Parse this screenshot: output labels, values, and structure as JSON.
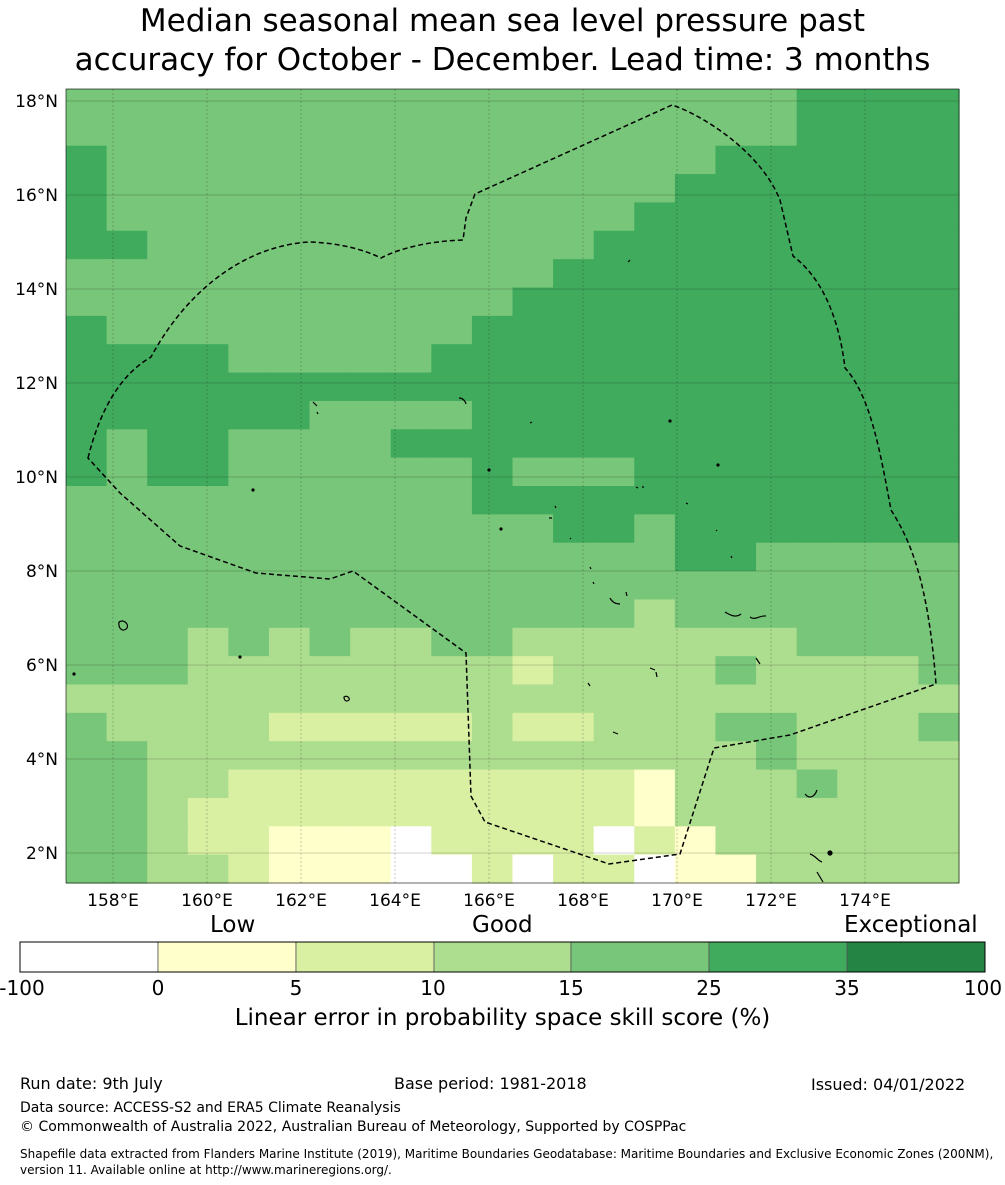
{
  "title": {
    "line1": "Median seasonal mean sea level pressure past",
    "line2": "accuracy for October - December. Lead time: 3 months"
  },
  "map": {
    "lat_labels": [
      "18°N",
      "16°N",
      "14°N",
      "12°N",
      "10°N",
      "8°N",
      "6°N",
      "4°N",
      "2°N"
    ],
    "lon_labels": [
      "158°E",
      "160°E",
      "162°E",
      "164°E",
      "166°E",
      "168°E",
      "170°E",
      "172°E",
      "174°E"
    ],
    "colors": {
      "-100": "#ffffff",
      "0": "#ffffcc",
      "5": "#d9f0a3",
      "10": "#addd8e",
      "15": "#78c679",
      "25": "#41ab5d",
      "35": "#238443"
    }
  },
  "colorbar": {
    "group_labels": [
      "Low",
      "Good",
      "Exceptional"
    ],
    "ticks": [
      "-100",
      "0",
      "5",
      "10",
      "15",
      "25",
      "35",
      "100"
    ],
    "title": "Linear error in probability space skill score (%)"
  },
  "footer": {
    "run_date": "Run date: 9th July",
    "base_period": "Base period: 1981-2018",
    "issued": "Issued: 04/01/2022",
    "data_source": "Data source: ACCESS-S2 and ERA5 Climate Reanalysis",
    "copyright": "© Commonwealth of Australia 2022, Australian Bureau of Meteorology, Supported by COSPPac",
    "shapefile_line1": "Shapefile data extracted from Flanders Marine Institute (2019), Maritime Boundaries Geodatabase: Maritime Boundaries and Exclusive Economic Zones (200NM),",
    "shapefile_line2": "version 11. Available online at http://www.marineregions.org/."
  }
}
